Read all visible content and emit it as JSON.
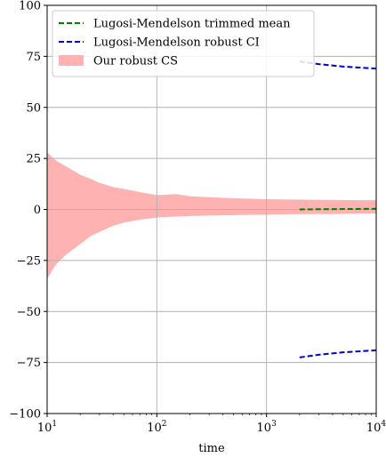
{
  "chart_data": {
    "type": "line",
    "xscale": "log",
    "xlim": [
      10,
      10000
    ],
    "ylim": [
      -100,
      100
    ],
    "xlabel": "time",
    "ylabel": "",
    "title": "",
    "grid": true,
    "legend_position": "top-left",
    "x_ticks": [
      {
        "value": 10,
        "base": "10",
        "exp": "1"
      },
      {
        "value": 100,
        "base": "10",
        "exp": "2"
      },
      {
        "value": 1000,
        "base": "10",
        "exp": "3"
      },
      {
        "value": 10000,
        "base": "10",
        "exp": "4"
      }
    ],
    "y_ticks": [
      {
        "value": 100,
        "label": "100"
      },
      {
        "value": 75,
        "label": "75"
      },
      {
        "value": 50,
        "label": "50"
      },
      {
        "value": 25,
        "label": "25"
      },
      {
        "value": 0,
        "label": "0"
      },
      {
        "value": -25,
        "label": "−25"
      },
      {
        "value": -50,
        "label": "−50"
      },
      {
        "value": -75,
        "label": "−75"
      },
      {
        "value": -100,
        "label": "−100"
      }
    ],
    "legend": [
      {
        "label": "Lugosi-Mendelson trimmed mean",
        "color": "#008000",
        "style": "dashed"
      },
      {
        "label": "Lugosi-Mendelson robust CI",
        "color": "#0000cc",
        "style": "dashed"
      },
      {
        "label": "Our robust CS",
        "color": "#ffb2b2",
        "style": "fill"
      }
    ],
    "series": [
      {
        "name": "Lugosi-Mendelson trimmed mean",
        "color": "#008000",
        "x": [
          2000,
          3000,
          5000,
          10000
        ],
        "y": [
          0.0,
          0.1,
          0.2,
          0.3
        ]
      },
      {
        "name": "Lugosi-Mendelson robust CI",
        "color": "#0000cc",
        "part": "upper",
        "x": [
          2000,
          3000,
          5000,
          10000
        ],
        "y": [
          72.5,
          71.2,
          70.0,
          69.0
        ]
      },
      {
        "name": "Lugosi-Mendelson robust CI",
        "color": "#0000cc",
        "part": "lower",
        "x": [
          2000,
          3000,
          5000,
          10000
        ],
        "y": [
          -72.5,
          -71.2,
          -70.0,
          -69.0
        ]
      }
    ],
    "band": {
      "name": "Our robust CS",
      "color": "#ffb2b2",
      "x": [
        10,
        12,
        15,
        20,
        25,
        30,
        40,
        50,
        70,
        100,
        150,
        200,
        300,
        500,
        1000,
        2000,
        5000,
        10000
      ],
      "upper": [
        28,
        24,
        21,
        17,
        15,
        13,
        11,
        10,
        8.5,
        7,
        7.5,
        6.5,
        6,
        5.5,
        5,
        4.8,
        4.6,
        4.5
      ],
      "lower": [
        -34,
        -27,
        -22,
        -17,
        -13,
        -11,
        -8,
        -6.5,
        -5,
        -4,
        -3.5,
        -3.2,
        -3,
        -2.8,
        -2.5,
        -2.3,
        -2.2,
        -2
      ]
    }
  }
}
